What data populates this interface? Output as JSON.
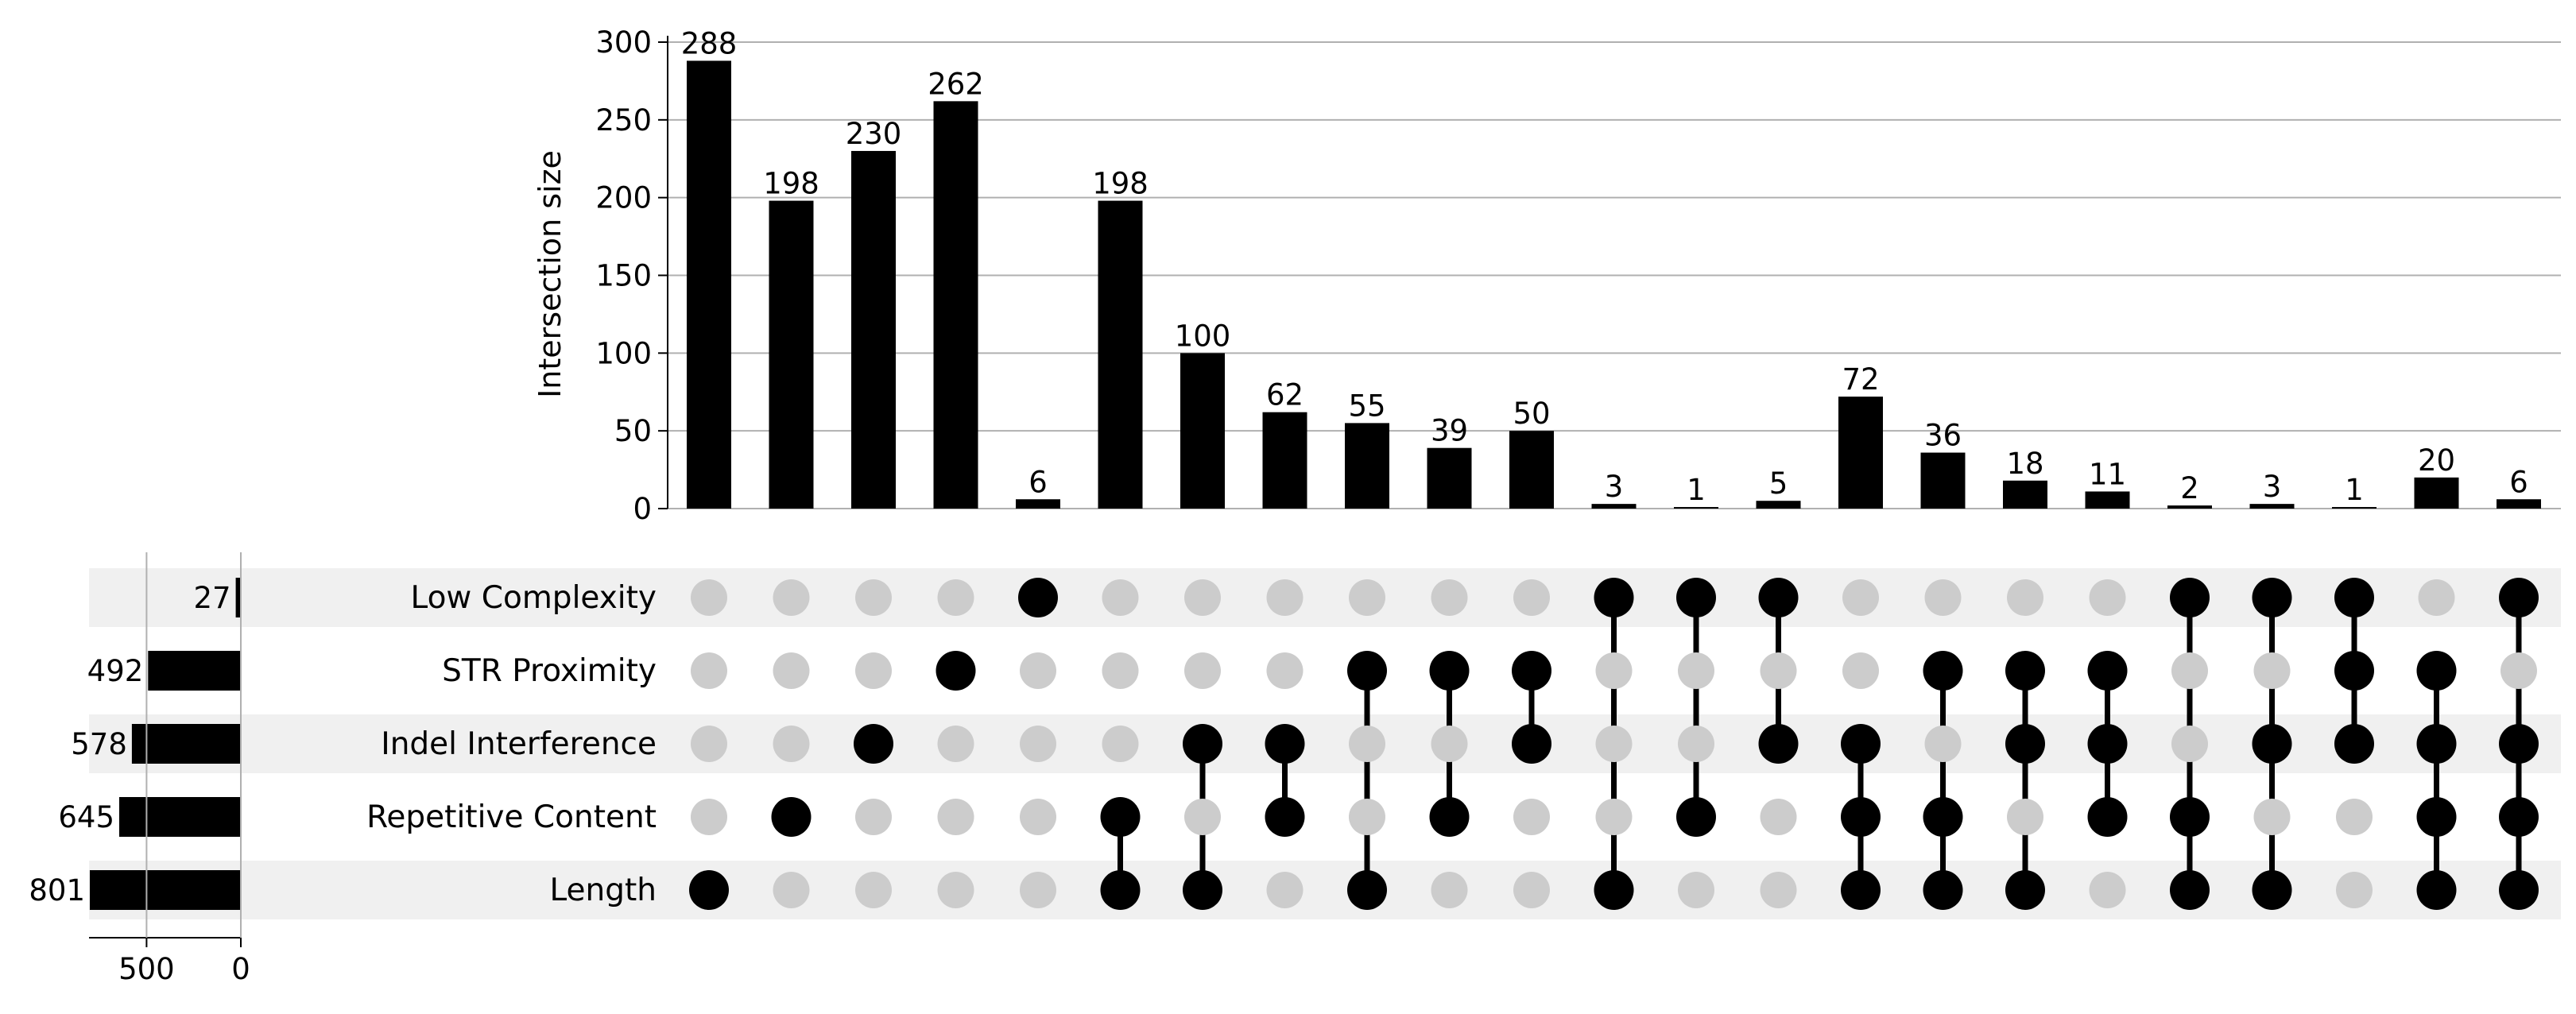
{
  "chart_data": {
    "type": "upset",
    "ylabel": "Intersection size",
    "yticks": [
      "0",
      "50",
      "100",
      "150",
      "200",
      "250",
      "300"
    ],
    "ylim": [
      0,
      300
    ],
    "sets": [
      {
        "name": "Low Complexity",
        "size": 27,
        "size_label": "27"
      },
      {
        "name": "STR Proximity",
        "size": 492,
        "size_label": "492"
      },
      {
        "name": "Indel Interference",
        "size": 578,
        "size_label": "578"
      },
      {
        "name": "Repetitive Content",
        "size": 645,
        "size_label": "645"
      },
      {
        "name": "Length",
        "size": 801,
        "size_label": "801"
      }
    ],
    "set_size_ticks": [
      "500",
      "0"
    ],
    "intersections": [
      {
        "members": [
          "Length"
        ],
        "size": 288,
        "label": "288"
      },
      {
        "members": [
          "Repetitive Content"
        ],
        "size": 198,
        "label": "198"
      },
      {
        "members": [
          "Indel Interference"
        ],
        "size": 230,
        "label": "230"
      },
      {
        "members": [
          "STR Proximity"
        ],
        "size": 262,
        "label": "262"
      },
      {
        "members": [
          "Low Complexity"
        ],
        "size": 6,
        "label": "6"
      },
      {
        "members": [
          "Repetitive Content",
          "Length"
        ],
        "size": 198,
        "label": "198"
      },
      {
        "members": [
          "Indel Interference",
          "Length"
        ],
        "size": 100,
        "label": "100"
      },
      {
        "members": [
          "Indel Interference",
          "Repetitive Content"
        ],
        "size": 62,
        "label": "62"
      },
      {
        "members": [
          "STR Proximity",
          "Length"
        ],
        "size": 55,
        "label": "55"
      },
      {
        "members": [
          "STR Proximity",
          "Repetitive Content"
        ],
        "size": 39,
        "label": "39"
      },
      {
        "members": [
          "STR Proximity",
          "Indel Interference"
        ],
        "size": 50,
        "label": "50"
      },
      {
        "members": [
          "Low Complexity",
          "Length"
        ],
        "size": 3,
        "label": "3"
      },
      {
        "members": [
          "Low Complexity",
          "Repetitive Content"
        ],
        "size": 1,
        "label": "1"
      },
      {
        "members": [
          "Low Complexity",
          "Indel Interference"
        ],
        "size": 5,
        "label": "5"
      },
      {
        "members": [
          "Indel Interference",
          "Repetitive Content",
          "Length"
        ],
        "size": 72,
        "label": "72"
      },
      {
        "members": [
          "STR Proximity",
          "Repetitive Content",
          "Length"
        ],
        "size": 36,
        "label": "36"
      },
      {
        "members": [
          "STR Proximity",
          "Indel Interference",
          "Length"
        ],
        "size": 18,
        "label": "18"
      },
      {
        "members": [
          "STR Proximity",
          "Indel Interference",
          "Repetitive Content"
        ],
        "size": 11,
        "label": "11"
      },
      {
        "members": [
          "Low Complexity",
          "Repetitive Content",
          "Length"
        ],
        "size": 2,
        "label": "2"
      },
      {
        "members": [
          "Low Complexity",
          "Indel Interference",
          "Length"
        ],
        "size": 3,
        "label": "3"
      },
      {
        "members": [
          "Low Complexity",
          "STR Proximity",
          "Indel Interference"
        ],
        "size": 1,
        "label": "1"
      },
      {
        "members": [
          "STR Proximity",
          "Indel Interference",
          "Repetitive Content",
          "Length"
        ],
        "size": 20,
        "label": "20"
      },
      {
        "members": [
          "Low Complexity",
          "Indel Interference",
          "Repetitive Content",
          "Length"
        ],
        "size": 6,
        "label": "6"
      }
    ],
    "grid": true,
    "colors": {
      "bar": "#000000",
      "active_dot": "#000000",
      "inactive_dot": "#cccccc",
      "stripe": "#f0f0f0",
      "gridline": "#b0b0b0"
    }
  }
}
